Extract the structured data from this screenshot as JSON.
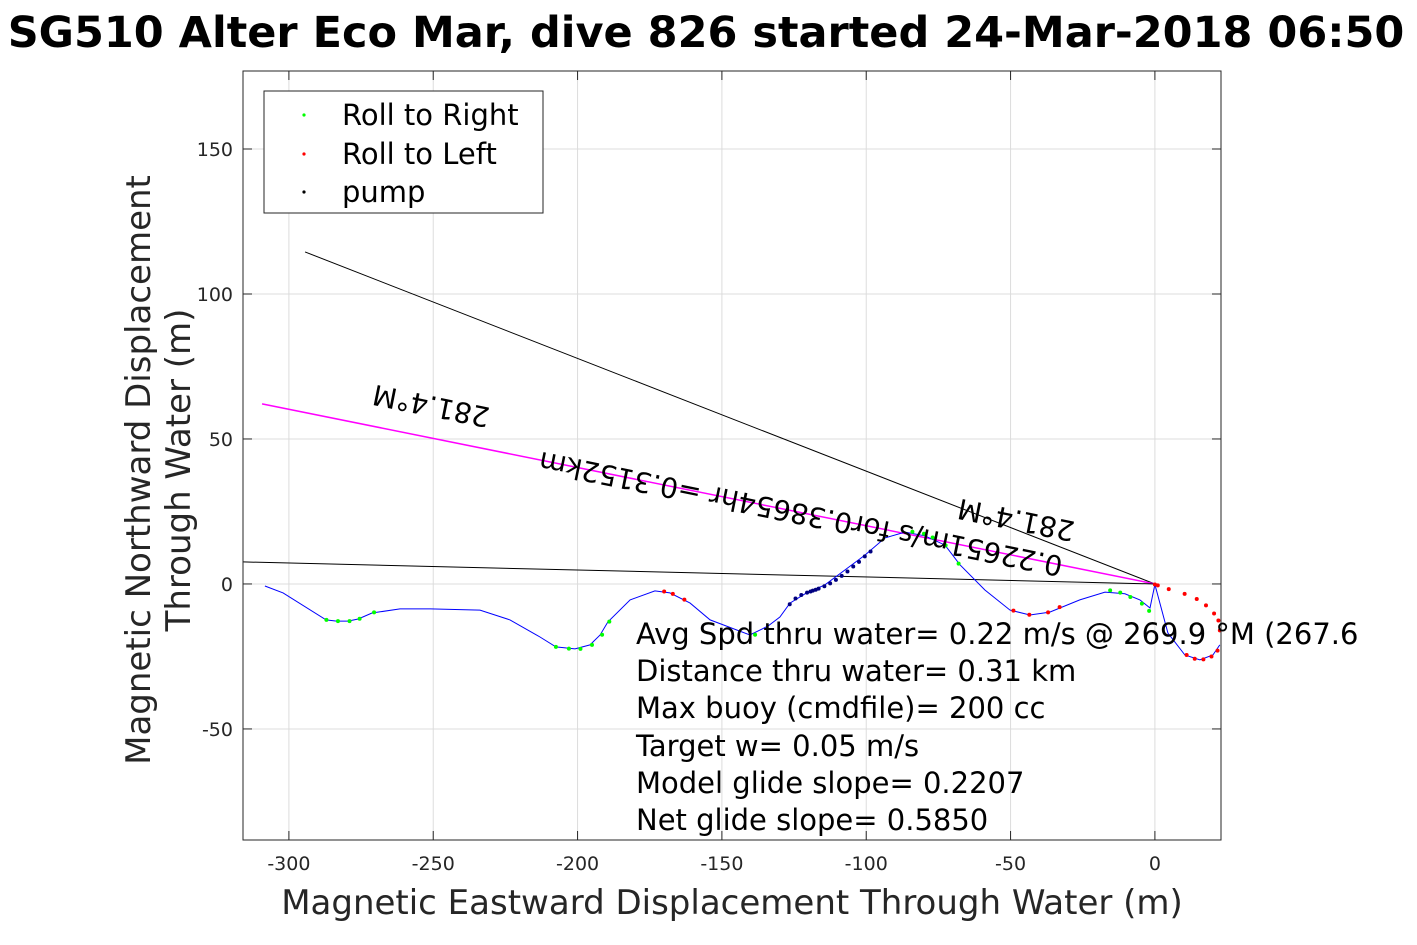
{
  "chart_data": {
    "type": "line",
    "title": "SG510 Alter Eco Mar, dive 826 started 24-Mar-2018 06:50",
    "xlabel": "Magnetic Eastward Displacement Through Water (m)",
    "ylabel": "Magnetic Northward Displacement Through Water (m)",
    "xlim": [
      -315.9,
      22.9
    ],
    "ylim": [
      -88.3,
      176.9
    ],
    "xticks": [
      -300,
      -250,
      -200,
      -150,
      -100,
      -50,
      0
    ],
    "yticks": [
      -50,
      0,
      50,
      100,
      150
    ],
    "grid": true,
    "legend": {
      "placement": "top-left",
      "entries": [
        {
          "label": "Roll to Right",
          "color": "#00ff00"
        },
        {
          "label": "Roll to Left",
          "color": "#ff0000"
        },
        {
          "label": "pump",
          "color": "#000000"
        }
      ]
    },
    "track": {
      "color": "#0000ff",
      "x": [
        -308.3,
        -302,
        -287.1,
        -283.5,
        -279.5,
        -276,
        -271.2,
        -261.5,
        -251,
        -233.8,
        -223.4,
        -213,
        -207.5,
        -200.9,
        -195.7,
        -192.2,
        -189.5,
        -181.8,
        -173.2,
        -168,
        -161,
        -154.1,
        -140.3,
        -134,
        -129.9,
        -126.4,
        -121.2,
        -114.3,
        -107.4,
        -100.4,
        -93.5,
        -86.6,
        -79.7,
        -72.7,
        -67.5,
        -58.9,
        -50.2,
        -43.3,
        -36.4,
        -26,
        -17.3,
        -10.4,
        -5.2,
        -1.7,
        0,
        4.5,
        10.4,
        15.6,
        20.1,
        22.5
      ],
      "y": [
        -0.7,
        -3.1,
        -12.4,
        -12.8,
        -12.8,
        -12.1,
        -10,
        -8.6,
        -8.6,
        -9,
        -12.4,
        -18.3,
        -21.7,
        -22.4,
        -21,
        -17.6,
        -13.1,
        -5.5,
        -2.4,
        -3.1,
        -6.6,
        -12.4,
        -17.6,
        -14.5,
        -11.4,
        -6.6,
        -3.4,
        -0.3,
        4.8,
        10,
        15.9,
        17.9,
        16.6,
        13.4,
        6.6,
        -2.1,
        -9,
        -10.7,
        -9.7,
        -5.5,
        -2.8,
        -3.4,
        -5.5,
        -8.3,
        -0.2,
        -16.9,
        -24.5,
        -26.2,
        -24.5,
        -21
      ]
    },
    "markers": {
      "roll_right": [
        [
          -287,
          -12.4
        ],
        [
          -283,
          -12.8
        ],
        [
          -279,
          -12.8
        ],
        [
          -275.5,
          -12
        ],
        [
          -270.5,
          -9.8
        ],
        [
          -207.5,
          -21.7
        ],
        [
          -203,
          -22.3
        ],
        [
          -199,
          -22.4
        ],
        [
          -195,
          -21
        ],
        [
          -191.5,
          -17.5
        ],
        [
          -189,
          -13
        ],
        [
          -138.5,
          -17.5
        ],
        [
          -84,
          18
        ],
        [
          -80,
          17.3
        ],
        [
          -77,
          16
        ],
        [
          -72.5,
          13.3
        ],
        [
          -68,
          7
        ],
        [
          -15.5,
          -2.2
        ],
        [
          -12,
          -3
        ],
        [
          -8.5,
          -4.5
        ],
        [
          -4.5,
          -6.8
        ],
        [
          -2,
          -9.3
        ]
      ],
      "roll_left": [
        [
          -170,
          -2.6
        ],
        [
          -167,
          -3.4
        ],
        [
          -163,
          -5.4
        ],
        [
          -49,
          -9.2
        ],
        [
          -43.5,
          -10.6
        ],
        [
          -37,
          -9.8
        ],
        [
          -33,
          -8
        ],
        [
          0,
          -0.2
        ],
        [
          4.8,
          -1.8
        ],
        [
          10.3,
          -3.4
        ],
        [
          14.5,
          -5.2
        ],
        [
          17.7,
          -7.4
        ],
        [
          20.5,
          -10.2
        ],
        [
          22,
          -12.6
        ],
        [
          22.5,
          -16
        ],
        [
          11,
          -24.5
        ],
        [
          13.8,
          -25.8
        ],
        [
          16.8,
          -26
        ],
        [
          19.6,
          -25
        ],
        [
          21.7,
          -23
        ],
        [
          1,
          -0.5
        ]
      ],
      "pump": [
        [
          -126.5,
          -7
        ],
        [
          -124.5,
          -5
        ],
        [
          -122.5,
          -3.8
        ],
        [
          -120.5,
          -3
        ],
        [
          -118.5,
          -2.3
        ],
        [
          -116.5,
          -1.6
        ],
        [
          -114.5,
          -0.8
        ],
        [
          -112.5,
          0.2
        ],
        [
          -110.5,
          1.4
        ],
        [
          -108.5,
          2.8
        ],
        [
          -106.5,
          4.3
        ],
        [
          -104.5,
          6
        ],
        [
          -102.5,
          7.6
        ],
        [
          -100.5,
          9.5
        ],
        [
          -98.5,
          11.2
        ],
        [
          -119.3,
          -2.6
        ],
        [
          -117.5,
          -2
        ]
      ]
    },
    "lines": [
      {
        "name": "heading-line",
        "color": "#000000",
        "x": [
          -294.4,
          0
        ],
        "y": [
          114.5,
          0
        ]
      },
      {
        "name": "net-track-line",
        "color": "#ff00ff",
        "x": [
          -309.3,
          0
        ],
        "y": [
          62.1,
          0
        ]
      },
      {
        "name": "current-line",
        "color": "#000000",
        "x": [
          -315.9,
          0
        ],
        "y": [
          7.6,
          0
        ]
      }
    ],
    "annotations": {
      "heading_far": "281.4°M",
      "heading_near": "281.4°M",
      "net_speed": "0.22651m/s for0.38654hr =0.3152km"
    },
    "stats": [
      "Avg Spd thru water=  0.22 m/s @ 269.9 °M (267.6",
      "Distance thru water=  0.31 km",
      "Max buoy (cmdfile)= 200 cc",
      "Target w= 0.05 m/s",
      "Model glide slope= 0.2207",
      "Net glide slope= 0.5850"
    ]
  }
}
